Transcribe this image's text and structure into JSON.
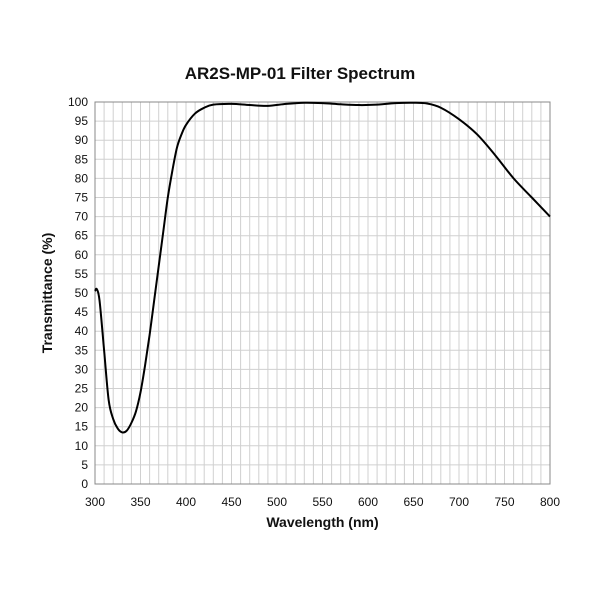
{
  "chart_data": {
    "type": "line",
    "title": "AR2S-MP-01 Filter Spectrum",
    "xlabel": "Wavelength (nm)",
    "ylabel": "Transmittance (%)",
    "xlim": [
      300,
      800
    ],
    "ylim": [
      0,
      100
    ],
    "xticks": [
      300,
      350,
      400,
      450,
      500,
      550,
      600,
      650,
      700,
      750,
      800
    ],
    "yticks": [
      0,
      5,
      10,
      15,
      20,
      25,
      30,
      35,
      40,
      45,
      50,
      55,
      60,
      65,
      70,
      75,
      80,
      85,
      90,
      95,
      100
    ],
    "grid": true,
    "minor_x_grid_step": 10,
    "line_color": "#000000",
    "grid_color": "#d0d0d0",
    "series": [
      {
        "x": [
          300,
          302,
          305,
          310,
          315,
          320,
          325,
          330,
          335,
          340,
          345,
          350,
          355,
          360,
          365,
          370,
          375,
          380,
          385,
          390,
          395,
          400,
          410,
          420,
          430,
          450,
          470,
          490,
          510,
          530,
          550,
          570,
          590,
          610,
          630,
          650,
          665,
          680,
          700,
          720,
          740,
          760,
          780,
          800
        ],
        "y": [
          50.5,
          51,
          48,
          35,
          22,
          17,
          14.5,
          13.5,
          14,
          16,
          19,
          24,
          31,
          39,
          48,
          57,
          66,
          75,
          82,
          88,
          91.5,
          94,
          97,
          98.5,
          99.3,
          99.5,
          99.2,
          99,
          99.5,
          99.8,
          99.7,
          99.4,
          99.2,
          99.3,
          99.7,
          99.8,
          99.6,
          98.5,
          95.5,
          91.5,
          86,
          80,
          75,
          70
        ]
      }
    ]
  }
}
